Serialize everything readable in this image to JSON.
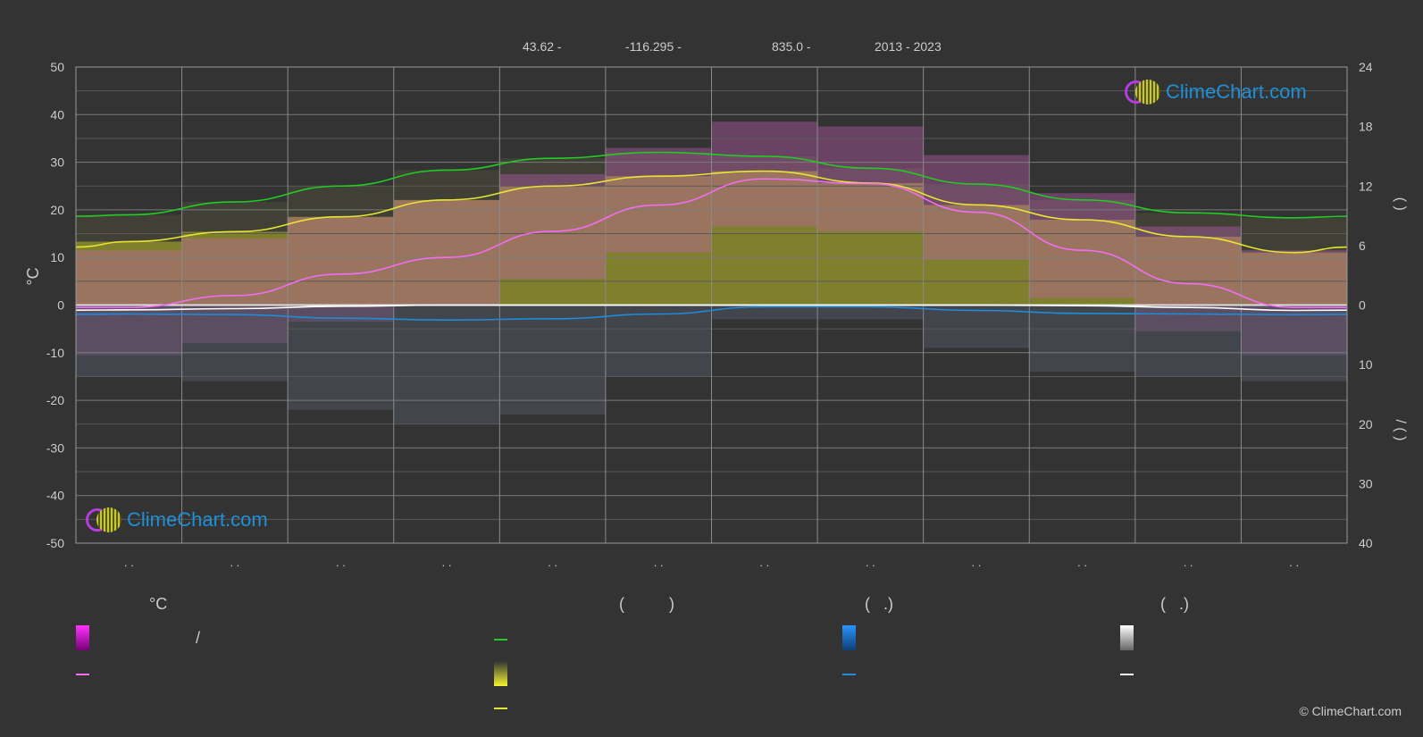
{
  "header": {
    "latitude": "43.62 -",
    "longitude": "-116.295 -",
    "elevation": "835.0 -",
    "period": "2013 - 2023"
  },
  "chart_data": {
    "type": "line",
    "left_axis": {
      "label": "°C",
      "range": [
        -50,
        50
      ],
      "ticks": [
        "50",
        "40",
        "30",
        "20",
        "10",
        "0",
        "-10",
        "-20",
        "-30",
        "-40",
        "-50"
      ]
    },
    "right_axis_upper": {
      "range": [
        0,
        24
      ],
      "ticks": [
        "24",
        "18",
        "12",
        "6",
        "0"
      ],
      "label": "(  )"
    },
    "right_axis_lower": {
      "range": [
        0,
        40
      ],
      "ticks": [
        "10",
        "20",
        "30",
        "40"
      ],
      "label": "/  (  )"
    },
    "month_labels": [
      ". .",
      ". .",
      ". .",
      ". .",
      ". .",
      ". .",
      ". .",
      ". .",
      ". .",
      ". .",
      ". .",
      ". ."
    ],
    "x": [
      1,
      2,
      3,
      4,
      5,
      6,
      7,
      8,
      9,
      10,
      11,
      12
    ],
    "series": [
      {
        "key": "daylight",
        "color": "#22cc22",
        "values": [
          9.1,
          10.4,
          12.0,
          13.6,
          14.8,
          15.4,
          15.0,
          13.8,
          12.2,
          10.6,
          9.3,
          8.8
        ]
      },
      {
        "key": "sunshine",
        "color": "#e6e632",
        "values": [
          6.4,
          7.4,
          8.9,
          10.6,
          12.0,
          13.0,
          13.5,
          12.3,
          10.1,
          8.6,
          6.9,
          5.3
        ]
      },
      {
        "key": "avg_temp",
        "color": "#f06ef0",
        "values": [
          -0.5,
          2.0,
          6.5,
          10.0,
          15.5,
          21.0,
          26.5,
          25.5,
          19.5,
          11.5,
          4.5,
          -0.5
        ]
      },
      {
        "key": "precip",
        "color": "#1e8cd8",
        "values": [
          1.5,
          1.6,
          2.2,
          2.5,
          2.3,
          1.5,
          0.3,
          0.3,
          0.9,
          1.4,
          1.5,
          1.6
        ]
      },
      {
        "key": "snow",
        "color": "#ffffff",
        "values": [
          0.8,
          0.6,
          0.2,
          0.0,
          0.0,
          0.0,
          0.0,
          0.0,
          0.0,
          0.1,
          0.4,
          0.9
        ]
      }
    ]
  },
  "legend": {
    "col1_title": "°C",
    "col1_range_sep": "/",
    "col2_title": "(          )",
    "col3_title": "(   .)",
    "col4_title": "(   .)",
    "colors": {
      "temp_range": "#e020e0",
      "avg_temp": "#f06ef0",
      "daylight": "#22cc22",
      "sunshine_range": "#e6e632",
      "sunshine": "#e6e632",
      "rain_range": "#1e8cd8",
      "rain": "#1e8cd8",
      "snow_range": "#ffffff",
      "snow": "#ffffff"
    }
  },
  "logo": {
    "text": "ClimeChart.com"
  },
  "copyright": "© ClimeChart.com"
}
